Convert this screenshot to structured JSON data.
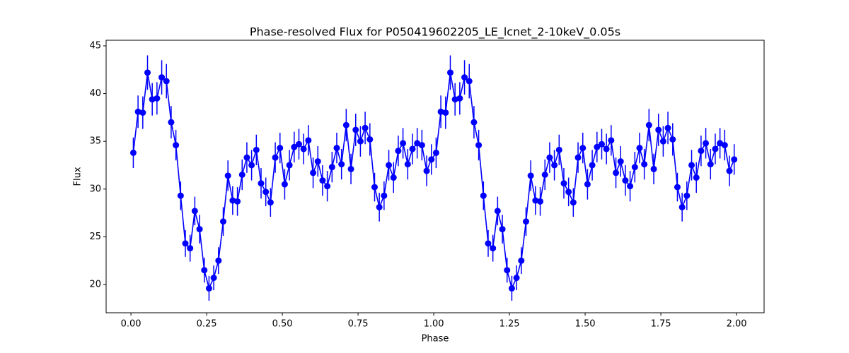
{
  "chart_data": {
    "type": "errorbar",
    "title": "Phase-resolved Flux for P050419602205_LE_lcnet_2-10keV_0.05s",
    "xlabel": "Phase",
    "ylabel": "Flux",
    "color": "#0000ff",
    "xlim": [
      -0.082,
      2.091
    ],
    "ylim": [
      17.04,
      45.59
    ],
    "xticks": [
      {
        "value": 0,
        "label": "0.00"
      },
      {
        "value": 0.25,
        "label": "0.25"
      },
      {
        "value": 0.5,
        "label": "0.50"
      },
      {
        "value": 0.75,
        "label": "0.75"
      },
      {
        "value": 1,
        "label": "1.00"
      },
      {
        "value": 1.25,
        "label": "1.25"
      },
      {
        "value": 1.5,
        "label": "1.50"
      },
      {
        "value": 1.75,
        "label": "1.75"
      },
      {
        "value": 2,
        "label": "2.00"
      }
    ],
    "yticks": [
      20,
      25,
      30,
      35,
      40,
      45
    ],
    "x": [
      0.0078,
      0.0234,
      0.0391,
      0.0547,
      0.0703,
      0.0859,
      0.1016,
      0.1172,
      0.1328,
      0.1484,
      0.1641,
      0.1797,
      0.1953,
      0.2109,
      0.2266,
      0.2422,
      0.2578,
      0.2734,
      0.2891,
      0.3047,
      0.3203,
      0.3359,
      0.3516,
      0.3672,
      0.3828,
      0.3984,
      0.4141,
      0.4297,
      0.4453,
      0.4609,
      0.4766,
      0.4922,
      0.5078,
      0.5234,
      0.5391,
      0.5547,
      0.5703,
      0.5859,
      0.6016,
      0.6172,
      0.6328,
      0.6484,
      0.6641,
      0.6797,
      0.6953,
      0.7109,
      0.7266,
      0.7422,
      0.7578,
      0.7734,
      0.7891,
      0.8047,
      0.8203,
      0.8359,
      0.8516,
      0.8672,
      0.8828,
      0.8984,
      0.9141,
      0.9297,
      0.9453,
      0.9609,
      0.9766,
      0.9922,
      1.0078,
      1.0234,
      1.0391,
      1.0547,
      1.0703,
      1.0859,
      1.1016,
      1.1172,
      1.1328,
      1.1484,
      1.1641,
      1.1797,
      1.1953,
      1.2109,
      1.2266,
      1.2422,
      1.2578,
      1.2734,
      1.2891,
      1.3047,
      1.3203,
      1.3359,
      1.3516,
      1.3672,
      1.3828,
      1.3984,
      1.4141,
      1.4297,
      1.4453,
      1.4609,
      1.4766,
      1.4922,
      1.5078,
      1.5234,
      1.5391,
      1.5547,
      1.5703,
      1.5859,
      1.6016,
      1.6172,
      1.6328,
      1.6484,
      1.6641,
      1.6797,
      1.6953,
      1.7109,
      1.7266,
      1.7422,
      1.7578,
      1.7734,
      1.7891,
      1.8047,
      1.8203,
      1.8359,
      1.8516,
      1.8672,
      1.8828,
      1.8984,
      1.9141,
      1.9297,
      1.9453,
      1.9609,
      1.9766,
      1.9922
    ],
    "values": [
      33.8,
      38.1,
      38.0,
      42.2,
      39.4,
      39.5,
      41.7,
      41.3,
      37.0,
      34.6,
      29.3,
      24.3,
      23.8,
      27.7,
      25.8,
      21.5,
      19.6,
      20.7,
      22.5,
      26.6,
      31.4,
      28.8,
      28.7,
      31.5,
      33.3,
      32.5,
      34.1,
      30.6,
      29.7,
      28.6,
      33.3,
      34.3,
      30.5,
      32.5,
      34.4,
      34.7,
      34.2,
      35.1,
      31.7,
      32.9,
      30.9,
      30.3,
      32.3,
      34.3,
      32.6,
      36.7,
      32.1,
      36.2,
      35.0,
      36.4,
      35.2,
      30.2,
      28.1,
      29.3,
      32.5,
      31.2,
      34.0,
      34.8,
      32.6,
      34.2,
      34.8,
      34.6,
      31.9,
      33.1,
      33.8,
      38.1,
      38.0,
      42.2,
      39.4,
      39.5,
      41.7,
      41.3,
      37.0,
      34.6,
      29.3,
      24.3,
      23.8,
      27.7,
      25.8,
      21.5,
      19.6,
      20.7,
      22.5,
      26.6,
      31.4,
      28.8,
      28.7,
      31.5,
      33.3,
      32.5,
      34.1,
      30.6,
      29.7,
      28.6,
      33.3,
      34.3,
      30.5,
      32.5,
      34.4,
      34.7,
      34.2,
      35.1,
      31.7,
      32.9,
      30.9,
      30.3,
      32.3,
      34.3,
      32.6,
      36.7,
      32.1,
      36.2,
      35.0,
      36.4,
      35.2,
      30.2,
      28.1,
      29.3,
      32.5,
      31.2,
      34.0,
      34.8,
      32.6,
      34.2,
      34.8,
      34.6,
      31.9,
      33.1
    ],
    "errors": [
      1.6,
      1.7,
      1.7,
      1.8,
      1.7,
      1.7,
      1.8,
      1.8,
      1.7,
      1.6,
      1.5,
      1.4,
      1.4,
      1.5,
      1.5,
      1.3,
      1.3,
      1.3,
      1.4,
      1.5,
      1.6,
      1.5,
      1.5,
      1.6,
      1.6,
      1.6,
      1.6,
      1.6,
      1.5,
      1.5,
      1.6,
      1.6,
      1.6,
      1.6,
      1.6,
      1.6,
      1.6,
      1.6,
      1.6,
      1.6,
      1.6,
      1.6,
      1.6,
      1.6,
      1.6,
      1.7,
      1.6,
      1.7,
      1.6,
      1.7,
      1.7,
      1.5,
      1.5,
      1.5,
      1.6,
      1.6,
      1.6,
      1.6,
      1.6,
      1.6,
      1.6,
      1.6,
      1.6,
      1.6,
      1.6,
      1.7,
      1.7,
      1.8,
      1.7,
      1.7,
      1.8,
      1.8,
      1.7,
      1.6,
      1.5,
      1.4,
      1.4,
      1.5,
      1.5,
      1.3,
      1.3,
      1.3,
      1.4,
      1.5,
      1.6,
      1.5,
      1.5,
      1.6,
      1.6,
      1.6,
      1.6,
      1.6,
      1.5,
      1.5,
      1.6,
      1.6,
      1.6,
      1.6,
      1.6,
      1.6,
      1.6,
      1.6,
      1.6,
      1.6,
      1.6,
      1.6,
      1.6,
      1.6,
      1.6,
      1.7,
      1.6,
      1.7,
      1.6,
      1.7,
      1.7,
      1.5,
      1.5,
      1.5,
      1.6,
      1.6,
      1.6,
      1.6,
      1.6,
      1.6,
      1.6,
      1.6,
      1.6,
      1.6
    ]
  }
}
